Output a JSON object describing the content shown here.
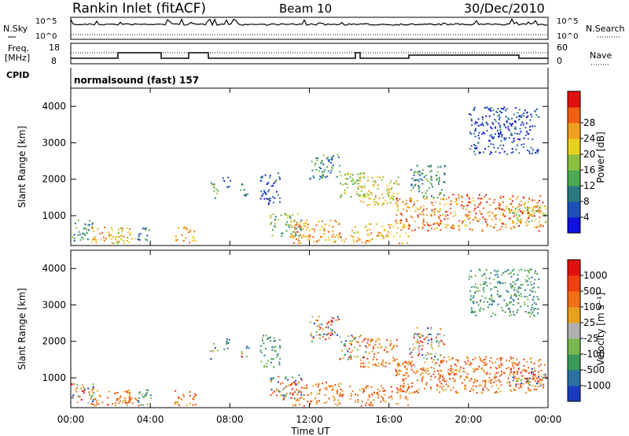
{
  "header": {
    "title": "Rankin Inlet (fitACF)",
    "beam": "Beam 10",
    "date": "30/Dec/2010"
  },
  "top_panels": {
    "nsky_label": "N.Sky",
    "nsearch_label": "N.Search",
    "noise_ticks": [
      "10^5",
      "10^0"
    ],
    "freq_label_1": "Freq.",
    "freq_label_2": "[MHz]",
    "freq_ticks": [
      "18",
      "8"
    ],
    "nave_label": "Nave",
    "nave_ticks": [
      "60",
      "0"
    ],
    "cpid_label": "CPID",
    "cpid_value": "normalsound (fast) 157"
  },
  "chart_data": [
    {
      "type": "heatmap",
      "name": "power",
      "xlabel": "Time UT",
      "ylabel": "Slant Range [km]",
      "xlim": [
        0,
        24
      ],
      "ylim": [
        180,
        4500
      ],
      "y_ticks": [
        "1000",
        "2000",
        "3000",
        "4000"
      ],
      "colorbar": {
        "label": "Power [dB]",
        "ticks": [
          "4",
          "8",
          "12",
          "16",
          "20",
          "24",
          "28"
        ],
        "colors": [
          "#1010e0",
          "#1e50b8",
          "#2a7a80",
          "#4caa50",
          "#8cc040",
          "#e8d020",
          "#f0a020",
          "#f06010",
          "#e01010"
        ]
      }
    },
    {
      "type": "heatmap",
      "name": "velocity",
      "xlabel": "Time UT",
      "ylabel": "Slant Range [km]",
      "xlim": [
        0,
        24
      ],
      "ylim": [
        180,
        4500
      ],
      "y_ticks": [
        "1000",
        "2000",
        "3000",
        "4000"
      ],
      "colorbar": {
        "label": "Velocity [m s⁻¹]",
        "ticks": [
          "1000",
          "500",
          "100",
          "25",
          "-25",
          "-100",
          "-500",
          "-1000"
        ],
        "colors": [
          "#1a3bc0",
          "#2a70a0",
          "#3a9a5a",
          "#7ab850",
          "#b0b0b0",
          "#e8a020",
          "#f07018",
          "#f04010",
          "#e01010"
        ]
      }
    }
  ],
  "x_ticks": [
    "00:00",
    "04:00",
    "08:00",
    "12:00",
    "16:00",
    "20:00",
    "00:00"
  ]
}
